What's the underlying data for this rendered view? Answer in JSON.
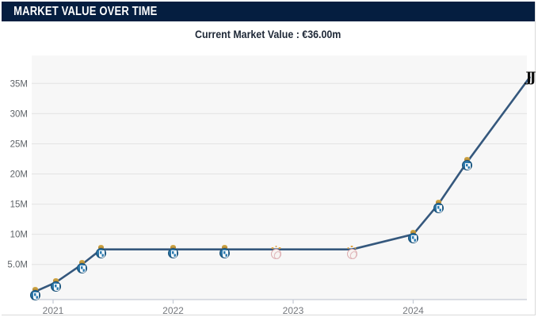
{
  "header": {
    "title": "MARKET VALUE OVER TIME"
  },
  "subtitle": {
    "text": "Current Market Value : €36.00m",
    "label": "Current Market Value",
    "value": "€36.00m"
  },
  "colors": {
    "header_bg": "#051e40",
    "header_text": "#ffffff",
    "subtitle_text": "#1d2736",
    "plot_bg": "#f7f7f7",
    "gridline": "#e3e3e3",
    "axis_line": "#c6ccd5",
    "value_line": "#35587d",
    "y_tick_text": "#5f6368",
    "x_tick_text": "#75787d",
    "blue_crest": "#2173a5",
    "crest_crown_gold": "#c49b40",
    "light_crest_ring": "#dcabae",
    "juventus_black": "#0d0d0d",
    "card_border": "#d9d9d9"
  },
  "icons": {
    "juventus_logo_text": "JJ"
  },
  "chart_data": {
    "type": "line",
    "title": "Market value over time",
    "current_market_value": "€36.00m",
    "xlabel": "",
    "ylabel": "",
    "x_range_years": [
      2020.8,
      2025.0
    ],
    "y_range_millions": [
      0,
      39
    ],
    "grid": "horizontal",
    "legend": "none",
    "y_ticks": [
      "35M",
      "30M",
      "25M",
      "20M",
      "15M",
      "10M",
      "5.0M"
    ],
    "x_ticks": [
      "2021",
      "2022",
      "2023",
      "2024"
    ],
    "series": [
      {
        "name": "Market value (€ millions)",
        "points": [
          {
            "year": 2020.85,
            "value_m": 0.5,
            "crest": "blue-club"
          },
          {
            "year": 2021.02,
            "value_m": 2.0,
            "crest": "blue-club"
          },
          {
            "year": 2021.24,
            "value_m": 5.0,
            "crest": "blue-club"
          },
          {
            "year": 2021.4,
            "value_m": 7.5,
            "crest": "blue-club"
          },
          {
            "year": 2022.0,
            "value_m": 7.5,
            "crest": "blue-club"
          },
          {
            "year": 2022.43,
            "value_m": 7.5,
            "crest": "blue-club"
          },
          {
            "year": 2022.86,
            "value_m": 7.5,
            "crest": "light-club"
          },
          {
            "year": 2023.49,
            "value_m": 7.5,
            "crest": "light-club"
          },
          {
            "year": 2024.0,
            "value_m": 10.0,
            "crest": "blue-club"
          },
          {
            "year": 2024.21,
            "value_m": 15.0,
            "crest": "blue-club"
          },
          {
            "year": 2024.45,
            "value_m": 22.0,
            "crest": "blue-club"
          },
          {
            "year": 2024.97,
            "value_m": 36.0,
            "crest": "juventus"
          }
        ]
      }
    ]
  }
}
